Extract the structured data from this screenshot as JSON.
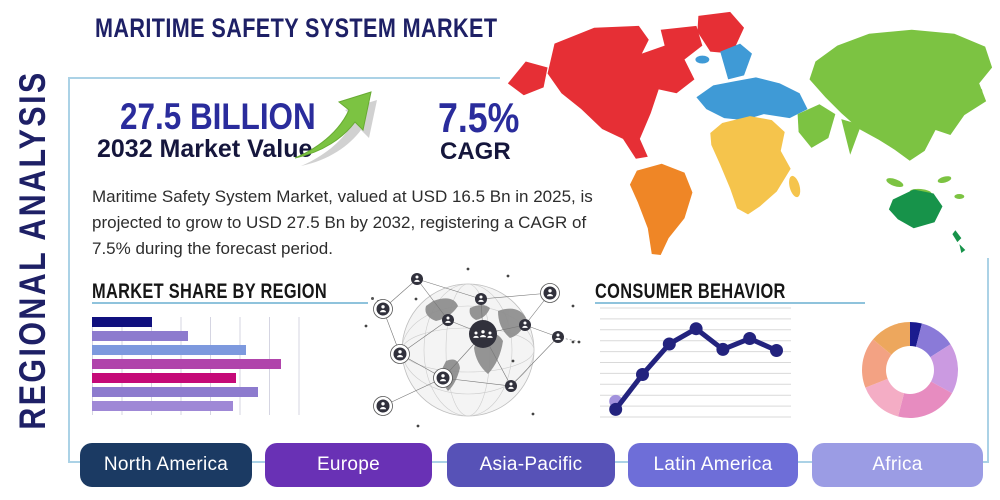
{
  "title": "MARITIME SAFETY SYSTEM MARKET",
  "side_label": "REGIONAL ANALYSIS",
  "highlight": {
    "value": "27.5 BILLION",
    "value_label": "2032 Market Value",
    "cagr": "7.5%",
    "cagr_label": "CAGR",
    "trend_icon": "growth-arrow-up-right",
    "trend_color": "#7cc342"
  },
  "description": "Maritime Safety System Market, valued at USD 16.5 Bn in 2025, is projected to grow to USD 27.5 Bn by 2032, registering a CAGR of 7.5% during the forecast period.",
  "chart_data": [
    {
      "type": "bar",
      "title": "MARKET SHARE BY REGION",
      "orientation": "horizontal",
      "values": [
        29,
        46,
        74,
        91,
        69,
        80,
        68
      ],
      "xlim": [
        0,
        100
      ],
      "grid": true,
      "colors": [
        "#10107e",
        "#8d7bce",
        "#7d99de",
        "#b044ab",
        "#c50a78",
        "#8d7bce",
        "#9f88d6"
      ]
    },
    {
      "type": "line",
      "title": "CONSUMER BEHAVIOR",
      "x": [
        1,
        2,
        3,
        4,
        5,
        6,
        7
      ],
      "y": [
        0.7,
        3.9,
        6.7,
        8.1,
        6.2,
        7.2,
        6.1
      ],
      "ylim": [
        0,
        10
      ],
      "grid": true,
      "color": "#23237e",
      "marker": "circle",
      "start_marker_color": "#a292dd"
    },
    {
      "type": "pie",
      "subtype": "donut",
      "values": [
        4,
        12,
        17,
        21,
        15,
        17,
        14
      ],
      "colors": [
        "#1b1b8f",
        "#8a7ad8",
        "#cb9ae1",
        "#e78cc0",
        "#f4adc5",
        "#f3a283",
        "#eda75d"
      ],
      "inner_radius_ratio": 0.5,
      "start_angle_deg": -90
    }
  ],
  "map": {
    "name": "world-map",
    "regions": [
      {
        "name": "North America",
        "color": "#e62f35"
      },
      {
        "name": "South America",
        "color": "#ef8626"
      },
      {
        "name": "Europe",
        "color": "#3f9ad6"
      },
      {
        "name": "Africa",
        "color": "#f5c44c"
      },
      {
        "name": "Asia",
        "color": "#7cc342"
      },
      {
        "name": "Australia",
        "color": "#17934a"
      }
    ]
  },
  "globe_graphic": {
    "name": "global-network-people-icon"
  },
  "buttons": [
    {
      "label": "North America",
      "color": "#1b3a63"
    },
    {
      "label": "Europe",
      "color": "#6931b5"
    },
    {
      "label": "Asia-Pacific",
      "color": "#5752b7"
    },
    {
      "label": "Latin America",
      "color": "#6e6ed8"
    },
    {
      "label": "Africa",
      "color": "#9b9ce4"
    }
  ],
  "colors": {
    "card_border": "#abd2e6",
    "underline": "#8fc3dc",
    "title_text": "#1e2066",
    "stat_value_text": "#2a2c9c",
    "stat_label_text": "#15163c"
  }
}
